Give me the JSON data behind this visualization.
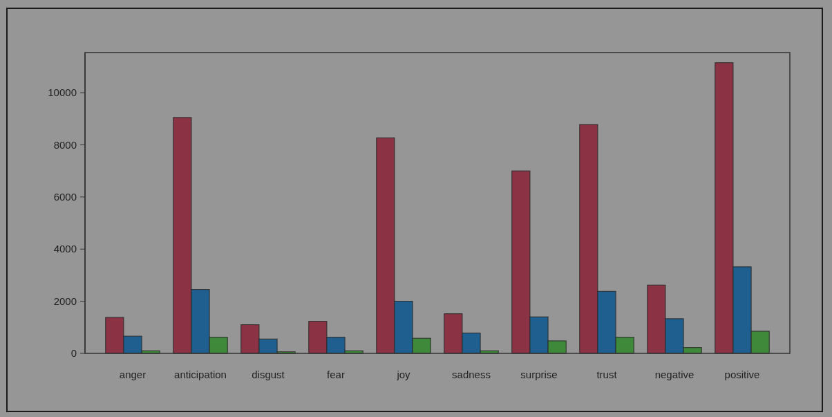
{
  "chart_data": {
    "type": "bar",
    "categories": [
      "anger",
      "anticipation",
      "disgust",
      "fear",
      "joy",
      "sadness",
      "surprise",
      "trust",
      "negative",
      "positive"
    ],
    "series": [
      {
        "color": "#8b3344",
        "values": [
          1380,
          9050,
          1100,
          1230,
          8270,
          1520,
          7000,
          8780,
          2620,
          11150
        ]
      },
      {
        "color": "#1f5f8f",
        "values": [
          660,
          2450,
          550,
          620,
          2000,
          780,
          1400,
          2380,
          1330,
          3320
        ]
      },
      {
        "color": "#3f8a3a",
        "values": [
          100,
          620,
          60,
          100,
          580,
          100,
          480,
          620,
          220,
          850
        ]
      }
    ],
    "ylim": [
      0,
      11540
    ],
    "yticks": [
      0,
      2000,
      4000,
      6000,
      8000,
      10000
    ],
    "grid": false
  }
}
